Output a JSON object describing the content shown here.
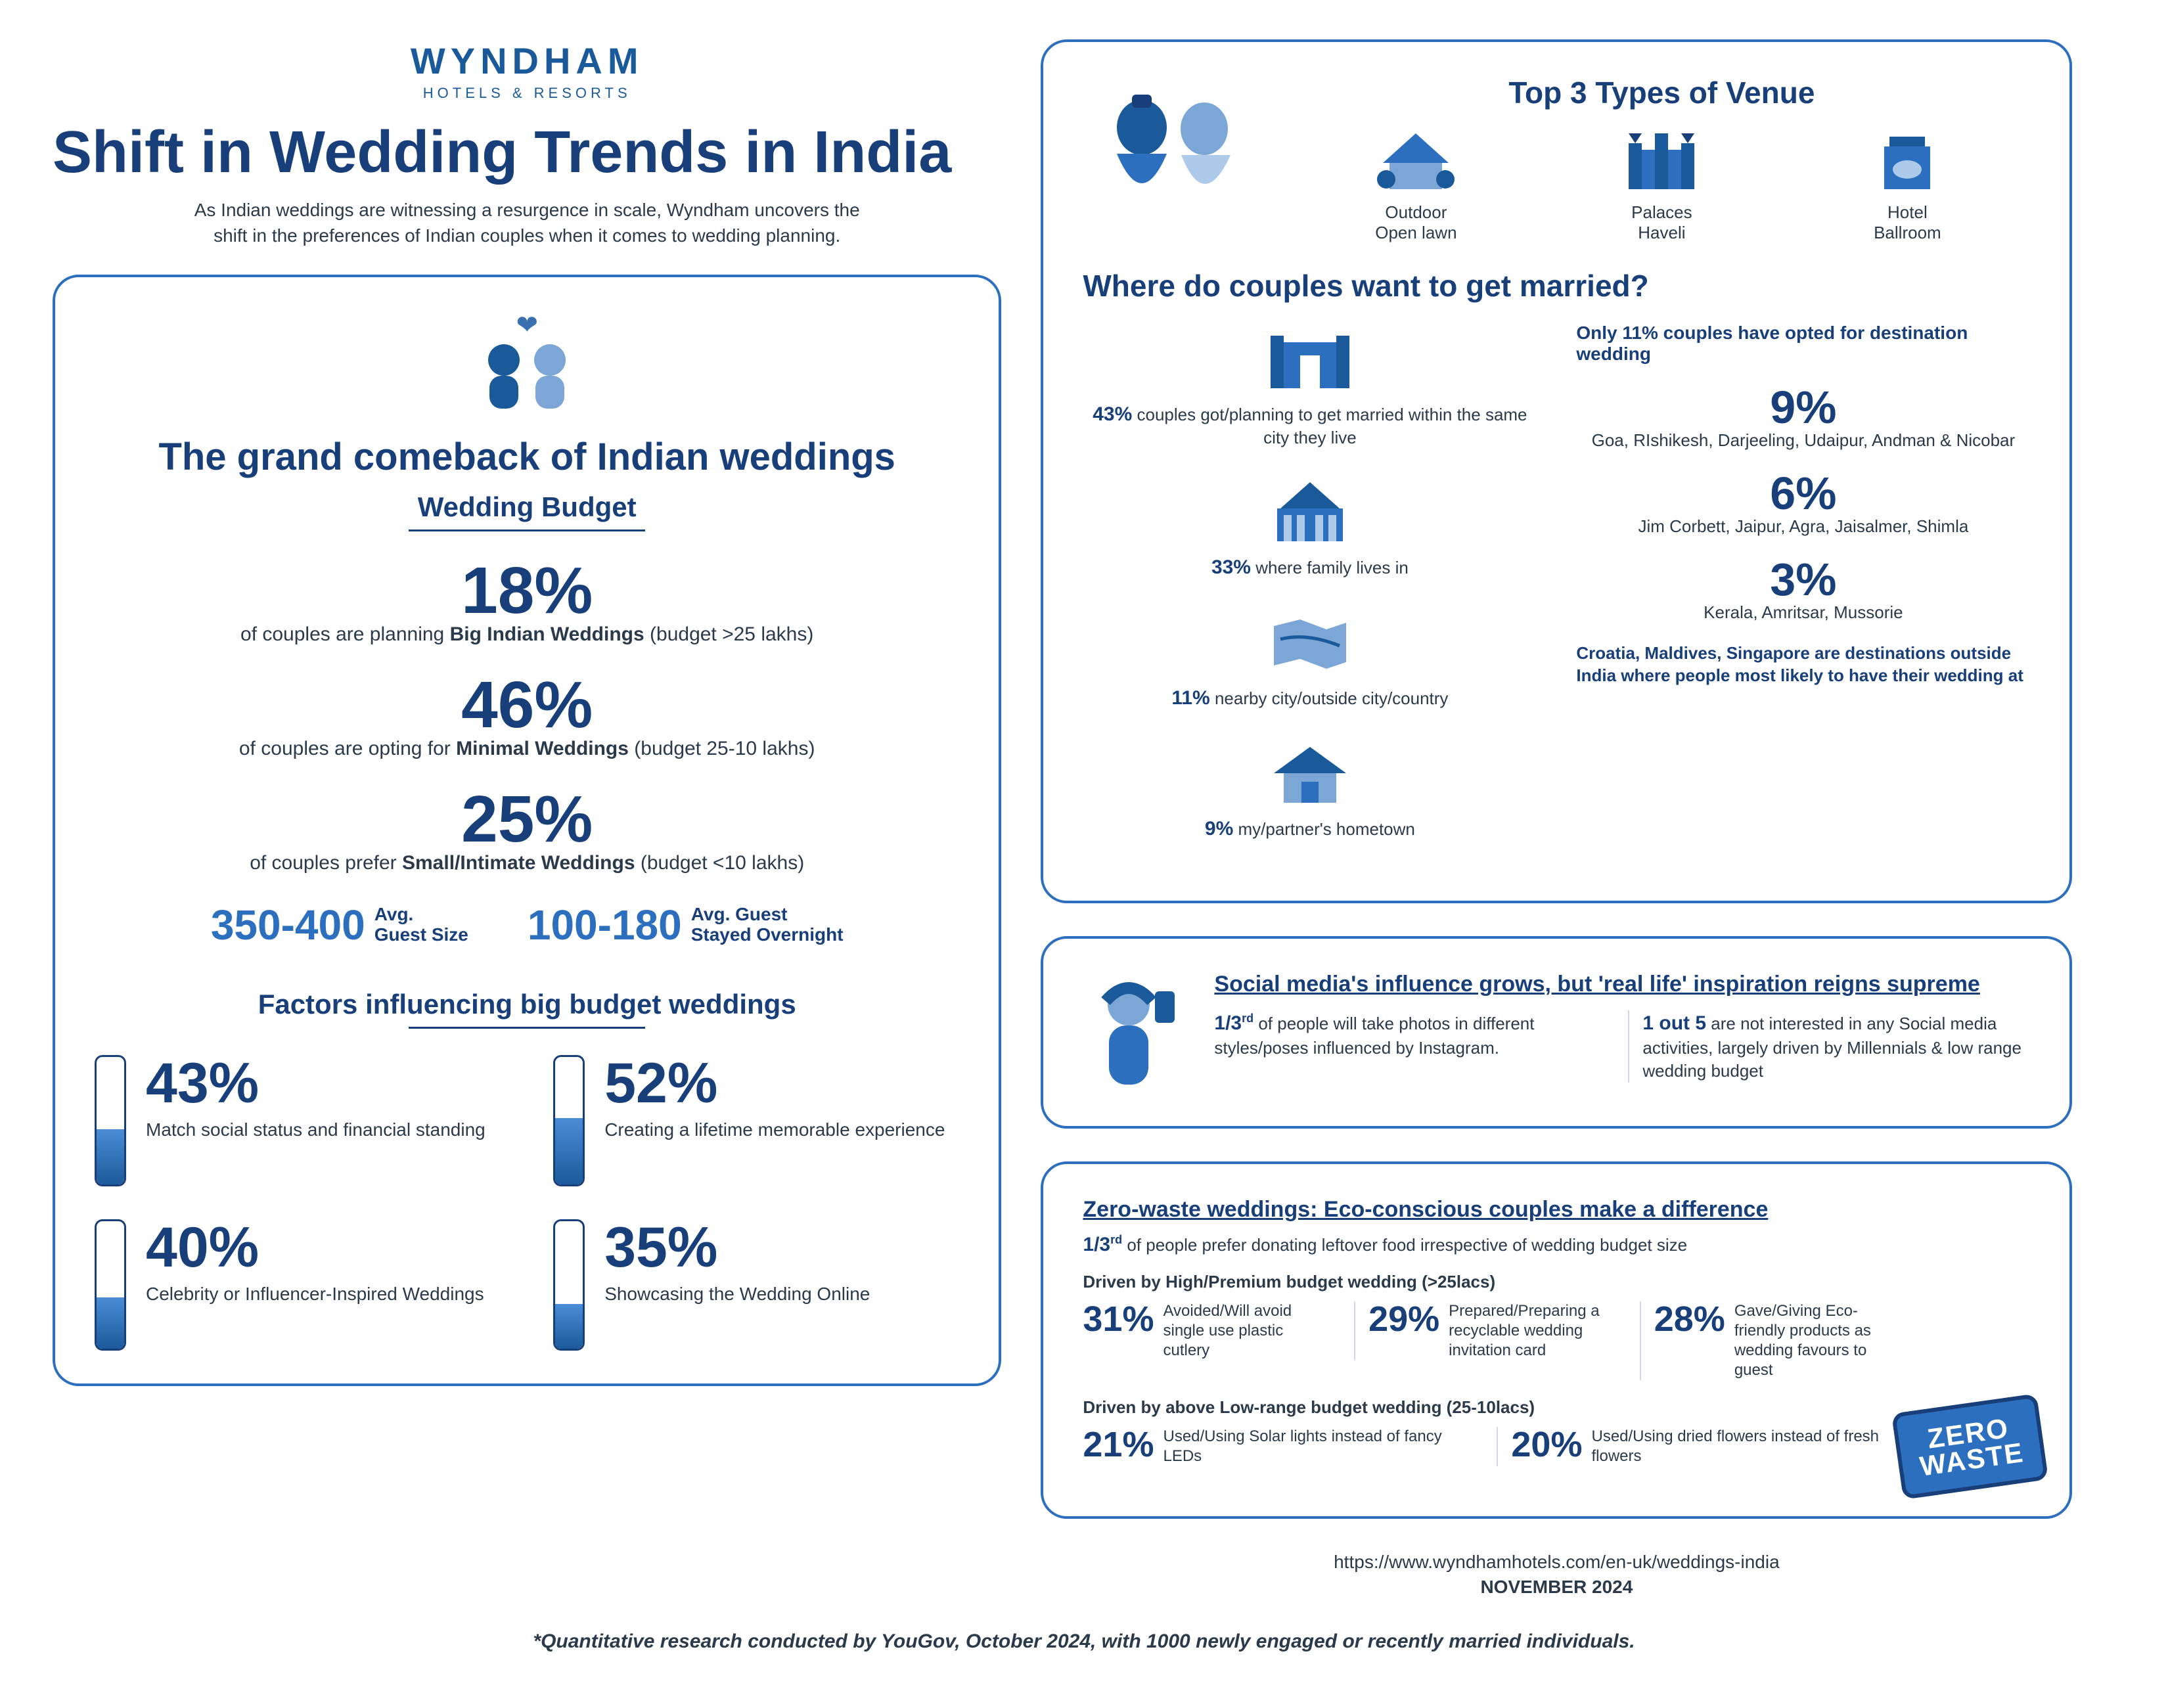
{
  "brand": {
    "name": "WYNDHAM",
    "sub": "HOTELS & RESORTS"
  },
  "title": "Shift in Wedding Trends in India",
  "intro": "As Indian weddings are witnessing a resurgence in scale, Wyndham uncovers the shift in the preferences of Indian couples when it comes to wedding planning.",
  "colors": {
    "accent": "#183f7a",
    "accent2": "#2d6fbf",
    "text": "#2b3a4a",
    "fill_top": "#4a8dd6",
    "fill_bot": "#1b5a9a",
    "bg": "#ffffff",
    "divider": "#cfd8e3"
  },
  "comeback": {
    "title": "The grand comeback of Indian weddings",
    "budget_label": "Wedding Budget",
    "rows": [
      {
        "pct": "18%",
        "pre": "of couples are planning ",
        "bold": "Big Indian Weddings",
        "post": " (budget >25 lakhs)"
      },
      {
        "pct": "46%",
        "pre": "of couples are opting for ",
        "bold": "Minimal Weddings",
        "post": " (budget 25-10 lakhs)"
      },
      {
        "pct": "25%",
        "pre": "of couples prefer ",
        "bold": "Small/Intimate Weddings",
        "post": " (budget <10 lakhs)"
      }
    ],
    "guest": [
      {
        "num": "350-400",
        "l1": "Avg.",
        "l2": "Guest Size"
      },
      {
        "num": "100-180",
        "l1": "Avg. Guest",
        "l2": "Stayed Overnight"
      }
    ]
  },
  "factors": {
    "title": "Factors influencing big budget weddings",
    "items": [
      {
        "pct": "43%",
        "label": "Match social status and financial standing",
        "fill": 43
      },
      {
        "pct": "52%",
        "label": "Creating a lifetime memorable experience",
        "fill": 52
      },
      {
        "pct": "40%",
        "label": "Celebrity or Influencer-Inspired Weddings",
        "fill": 40
      },
      {
        "pct": "35%",
        "label": "Showcasing the Wedding Online",
        "fill": 35
      }
    ]
  },
  "venues": {
    "where_title": "Where do couples want to get married?",
    "types_title": "Top 3 Types of Venue",
    "types": [
      {
        "l1": "Outdoor",
        "l2": "Open lawn"
      },
      {
        "l1": "Palaces",
        "l2": "Haveli"
      },
      {
        "l1": "Hotel",
        "l2": "Ballroom"
      }
    ],
    "left": [
      {
        "bold": "43%",
        "txt": " couples got/planning to get married within the same city they live"
      },
      {
        "bold": "33%",
        "txt": " where family lives in"
      },
      {
        "bold": "11%",
        "txt": " nearby city/outside city/country"
      },
      {
        "bold": "9%",
        "txt": " my/partner's hometown"
      }
    ],
    "dest_intro": "Only 11% couples have opted for destination wedding",
    "dest": [
      {
        "pct": "9%",
        "txt": "Goa, RIshikesh, Darjeeling, Udaipur, Andman & Nicobar"
      },
      {
        "pct": "6%",
        "txt": "Jim Corbett, Jaipur, Agra, Jaisalmer, Shimla"
      },
      {
        "pct": "3%",
        "txt": "Kerala, Amritsar, Mussorie"
      }
    ],
    "dest_note": "Croatia, Maldives, Singapore are destinations outside India where people most likely to have their wedding at"
  },
  "social": {
    "title": "Social media's influence grows, but 'real life' inspiration reigns supreme",
    "left": {
      "bold": "1/3",
      "sup": "rd",
      "txt": " of people will take photos in different styles/poses influenced by Instagram."
    },
    "right": {
      "bold": "1 out 5",
      "txt": " are not interested in any Social media activities, largely driven by Millennials & low range wedding budget"
    }
  },
  "eco": {
    "title": "Zero-waste weddings: Eco-conscious couples make a difference",
    "lead": {
      "bold": "1/3",
      "sup": "rd",
      "txt": " of people prefer donating leftover food irrespective of wedding budget size"
    },
    "high_label": "Driven by High/Premium budget wedding (>25lacs)",
    "high": [
      {
        "n": "31%",
        "t": "Avoided/Will avoid single use plastic cutlery"
      },
      {
        "n": "29%",
        "t": "Prepared/Preparing a recyclable wedding invitation card"
      },
      {
        "n": "28%",
        "t": "Gave/Giving Eco-friendly products as wedding favours to guest"
      }
    ],
    "low_label": "Driven by above Low-range budget wedding (25-10lacs)",
    "low": [
      {
        "n": "21%",
        "t": "Used/Using Solar lights instead of fancy LEDs"
      },
      {
        "n": "20%",
        "t": "Used/Using dried flowers instead of fresh flowers"
      }
    ],
    "badge": "ZERO WASTE"
  },
  "footer": {
    "link": "https://www.wyndhamhotels.com/en-uk/weddings-india",
    "date": "NOVEMBER 2024",
    "disclaimer": "*Quantitative research conducted by YouGov, October 2024, with 1000 newly engaged or recently married individuals."
  }
}
